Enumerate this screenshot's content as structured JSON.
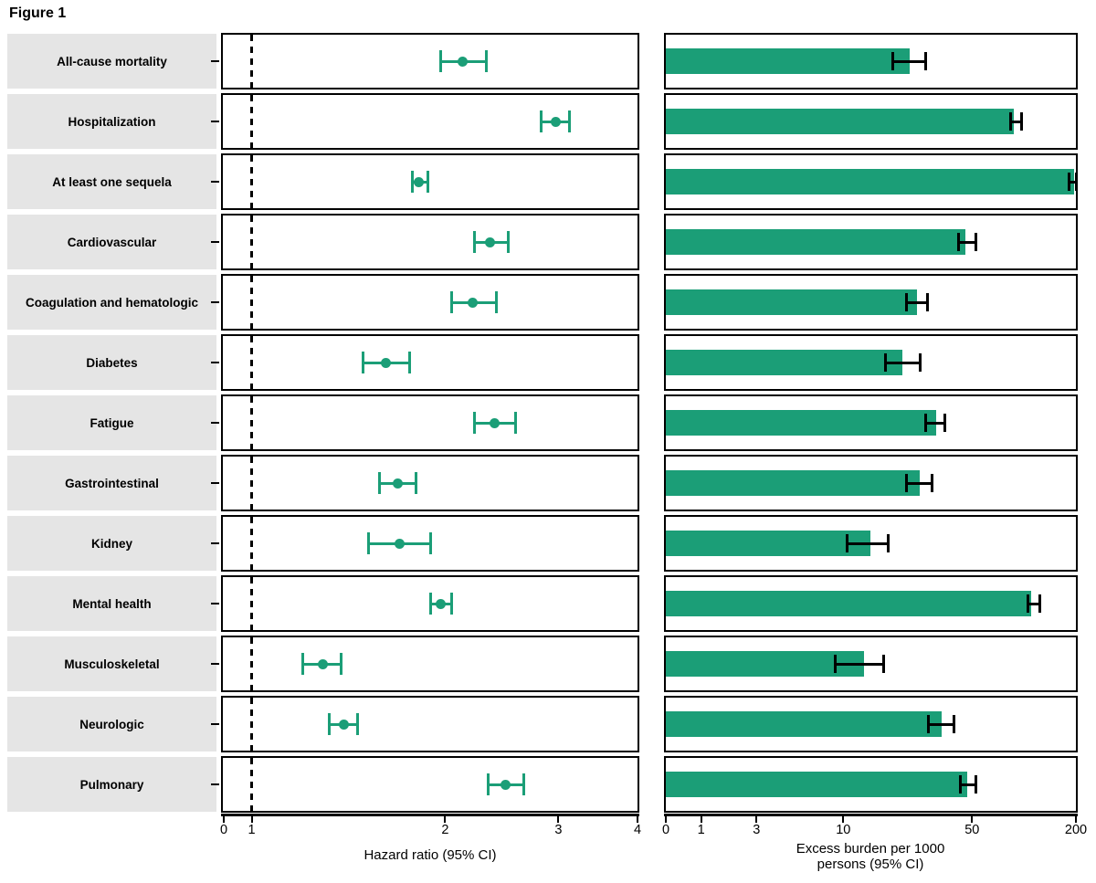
{
  "figure_label": "Figure 1",
  "colors": {
    "series_green": "#1b9e77",
    "label_background": "#e5e5e5",
    "axis_black": "#000000"
  },
  "hazard_panel": {
    "axis_title": "Hazard ratio (95% CI)",
    "tick_labels": [
      "0",
      "1",
      "2",
      "3",
      "4"
    ],
    "reference_line_value": 1
  },
  "burden_panel": {
    "axis_title": "Excess burden per 1000\npersons (95% CI)",
    "tick_labels": [
      "0",
      "1",
      "3",
      "10",
      "50",
      "200"
    ]
  },
  "chart_data": [
    {
      "type": "scatter",
      "subtype": "forest-plot",
      "title": "Hazard ratio (95% CI)",
      "xlabel": "Hazard ratio (95% CI)",
      "xscale": "log between 1 and 4, compressed 0-1 segment",
      "xticks": [
        0,
        1,
        2,
        3,
        4
      ],
      "xlim": [
        0,
        4
      ],
      "reference_line": 1,
      "grid": false,
      "categories": [
        "All-cause mortality",
        "Hospitalization",
        "At least one sequela",
        "Cardiovascular",
        "Coagulation and hematologic",
        "Diabetes",
        "Fatigue",
        "Gastrointestinal",
        "Kidney",
        "Mental health",
        "Musculoskeletal",
        "Neurologic",
        "Pulmonary"
      ],
      "series": [
        {
          "name": "Hazard ratio",
          "values": [
            2.13,
            2.97,
            1.82,
            2.35,
            2.21,
            1.62,
            2.39,
            1.69,
            1.7,
            1.97,
            1.29,
            1.39,
            2.48
          ],
          "ci_low": [
            1.97,
            2.82,
            1.78,
            2.22,
            2.05,
            1.49,
            2.22,
            1.58,
            1.52,
            1.9,
            1.2,
            1.32,
            2.33
          ],
          "ci_high": [
            2.32,
            3.12,
            1.88,
            2.51,
            2.4,
            1.76,
            2.57,
            1.8,
            1.9,
            2.05,
            1.38,
            1.46,
            2.65
          ]
        }
      ]
    },
    {
      "type": "bar",
      "subtype": "horizontal-bar-with-error",
      "title": "Excess burden per 1000 persons (95% CI)",
      "xlabel": "Excess burden per 1000 persons (95% CI)",
      "xscale": "log-like with ticks 0,1,3,10,50,200",
      "xticks": [
        0,
        1,
        3,
        10,
        50,
        200
      ],
      "xlim": [
        0,
        200
      ],
      "grid": false,
      "categories": [
        "All-cause mortality",
        "Hospitalization",
        "At least one sequela",
        "Cardiovascular",
        "Coagulation and hematologic",
        "Diabetes",
        "Fatigue",
        "Gastrointestinal",
        "Kidney",
        "Mental health",
        "Musculoskeletal",
        "Neurologic",
        "Pulmonary"
      ],
      "series": [
        {
          "name": "Excess burden per 1000 persons",
          "values": [
            23,
            87,
            194,
            46,
            25,
            21,
            32,
            26,
            14,
            110,
            13,
            34,
            47
          ],
          "ci_low": [
            18.5,
            84,
            183,
            42,
            22,
            17,
            28,
            22,
            10.5,
            105,
            9,
            29,
            43
          ],
          "ci_high": [
            28,
            97,
            203,
            52.5,
            28.5,
            26,
            35.5,
            30.5,
            17.5,
            123,
            16.5,
            40,
            52.5
          ]
        }
      ]
    }
  ]
}
